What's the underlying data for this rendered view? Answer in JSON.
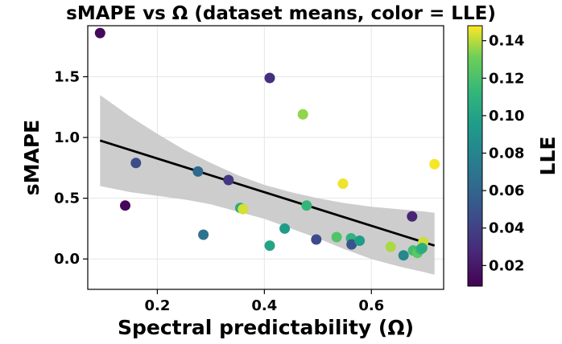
{
  "chart_data": {
    "type": "scatter",
    "title": "sMAPE vs Ω (dataset means, color = LLE)",
    "xlabel": "Spectral predictability (Ω)",
    "ylabel": "sMAPE",
    "colorbar_label": "LLE",
    "xlim": [
      0.07,
      0.735
    ],
    "ylim": [
      -0.25,
      1.92
    ],
    "xticks": [
      0.2,
      0.4,
      0.6
    ],
    "xtick_labels": [
      "0.2",
      "0.4",
      "0.6"
    ],
    "yticks": [
      0.0,
      0.5,
      1.0,
      1.5
    ],
    "ytick_labels": [
      "0.0",
      "0.5",
      "1.0",
      "1.5"
    ],
    "clim": [
      0.009,
      0.148
    ],
    "cticks": [
      0.02,
      0.04,
      0.06,
      0.08,
      0.1,
      0.12,
      0.14
    ],
    "ctick_labels": [
      "0.02",
      "0.04",
      "0.06",
      "0.08",
      "0.10",
      "0.12",
      "0.14"
    ],
    "grid": true,
    "points": [
      {
        "x": 0.093,
        "y": 1.86,
        "c": 0.012
      },
      {
        "x": 0.14,
        "y": 0.44,
        "c": 0.012
      },
      {
        "x": 0.16,
        "y": 0.79,
        "c": 0.045
      },
      {
        "x": 0.276,
        "y": 0.72,
        "c": 0.062
      },
      {
        "x": 0.286,
        "y": 0.2,
        "c": 0.068
      },
      {
        "x": 0.333,
        "y": 0.65,
        "c": 0.035
      },
      {
        "x": 0.355,
        "y": 0.42,
        "c": 0.105
      },
      {
        "x": 0.36,
        "y": 0.41,
        "c": 0.143
      },
      {
        "x": 0.41,
        "y": 1.49,
        "c": 0.03
      },
      {
        "x": 0.41,
        "y": 0.11,
        "c": 0.1
      },
      {
        "x": 0.438,
        "y": 0.25,
        "c": 0.095
      },
      {
        "x": 0.472,
        "y": 1.19,
        "c": 0.135
      },
      {
        "x": 0.479,
        "y": 0.44,
        "c": 0.112
      },
      {
        "x": 0.497,
        "y": 0.16,
        "c": 0.045
      },
      {
        "x": 0.535,
        "y": 0.18,
        "c": 0.122
      },
      {
        "x": 0.547,
        "y": 0.62,
        "c": 0.146
      },
      {
        "x": 0.562,
        "y": 0.17,
        "c": 0.11
      },
      {
        "x": 0.563,
        "y": 0.12,
        "c": 0.05
      },
      {
        "x": 0.578,
        "y": 0.15,
        "c": 0.095
      },
      {
        "x": 0.636,
        "y": 0.1,
        "c": 0.138
      },
      {
        "x": 0.66,
        "y": 0.03,
        "c": 0.082
      },
      {
        "x": 0.676,
        "y": 0.35,
        "c": 0.025
      },
      {
        "x": 0.678,
        "y": 0.07,
        "c": 0.118
      },
      {
        "x": 0.686,
        "y": 0.05,
        "c": 0.125
      },
      {
        "x": 0.692,
        "y": 0.08,
        "c": 0.112
      },
      {
        "x": 0.697,
        "y": 0.14,
        "c": 0.142
      },
      {
        "x": 0.695,
        "y": 0.09,
        "c": 0.105
      },
      {
        "x": 0.718,
        "y": 0.78,
        "c": 0.147
      }
    ],
    "fit_line": {
      "x": [
        0.093,
        0.718
      ],
      "y": [
        0.975,
        0.11
      ]
    },
    "ci_band": {
      "x": [
        0.093,
        0.15,
        0.2,
        0.25,
        0.3,
        0.35,
        0.4,
        0.45,
        0.5,
        0.55,
        0.6,
        0.65,
        0.7,
        0.718
      ],
      "upper": [
        1.35,
        1.17,
        1.03,
        0.9,
        0.79,
        0.69,
        0.61,
        0.55,
        0.5,
        0.46,
        0.43,
        0.41,
        0.39,
        0.38
      ],
      "lower": [
        0.6,
        0.55,
        0.52,
        0.49,
        0.45,
        0.39,
        0.33,
        0.25,
        0.17,
        0.08,
        0.0,
        -0.06,
        -0.11,
        -0.13
      ]
    },
    "colormap": "viridis"
  }
}
